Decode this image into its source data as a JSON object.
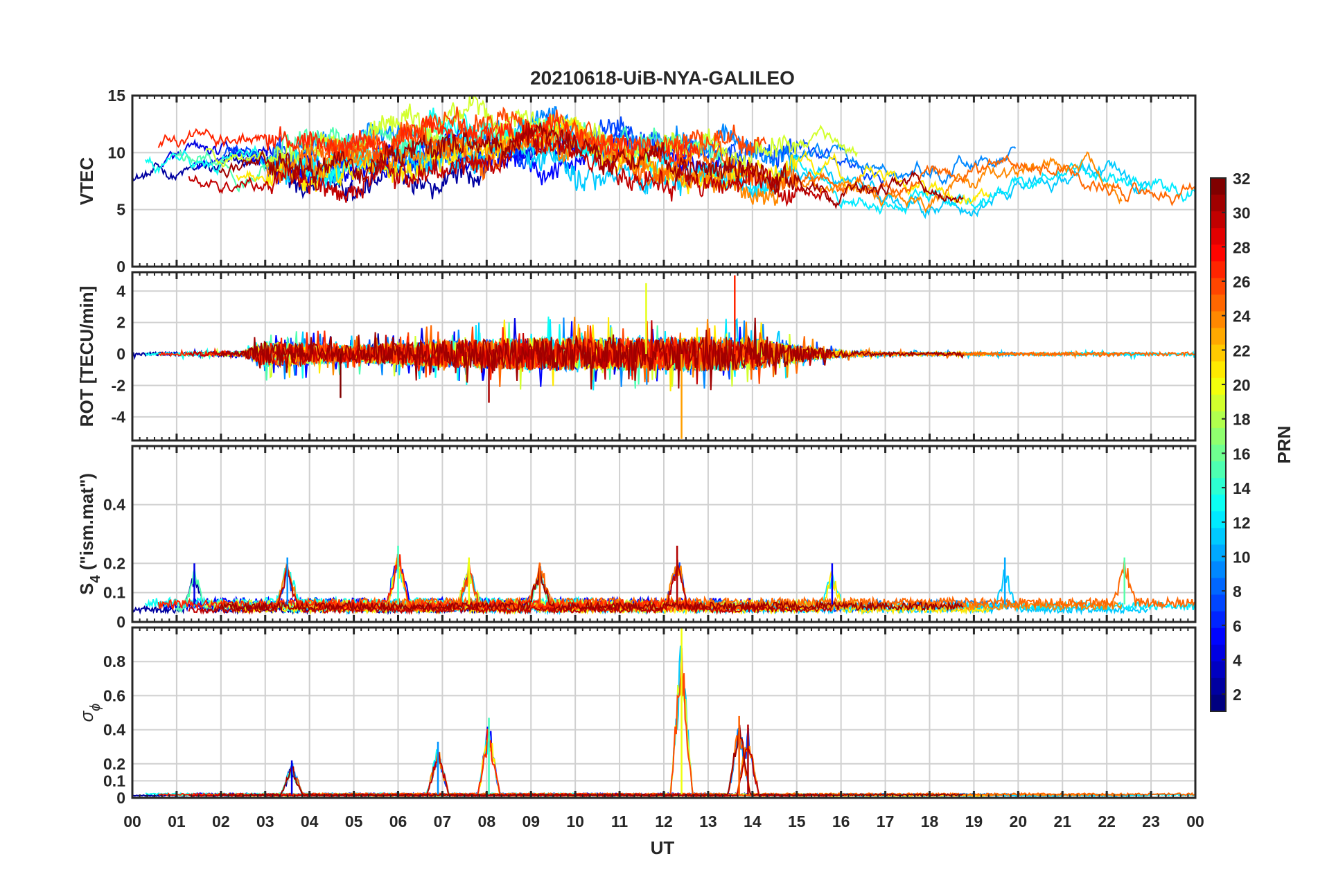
{
  "chart_data": {
    "type": "line",
    "title": "20210618-UiB-NYA-GALILEO",
    "xlabel": "UT",
    "x_tick_labels": [
      "00",
      "01",
      "02",
      "03",
      "04",
      "05",
      "06",
      "07",
      "08",
      "09",
      "10",
      "11",
      "12",
      "13",
      "14",
      "15",
      "16",
      "17",
      "18",
      "19",
      "20",
      "21",
      "22",
      "23",
      "00"
    ],
    "xlim_hours": [
      0,
      24
    ],
    "grid": true,
    "colorbar": {
      "label": "PRN",
      "range": [
        1,
        32
      ],
      "ticks": [
        "2",
        "4",
        "6",
        "8",
        "10",
        "12",
        "14",
        "16",
        "18",
        "20",
        "22",
        "24",
        "26",
        "28",
        "30",
        "32"
      ],
      "colormap": "jet"
    },
    "panels": [
      {
        "ylabel": "VTEC",
        "ylim": [
          0,
          15
        ],
        "yticks": [
          "0",
          "5",
          "10",
          "15"
        ],
        "ytick_values": [
          0,
          5,
          10,
          15
        ],
        "approx_trend": {
          "hours": [
            0,
            2,
            3.5,
            5,
            6,
            7,
            8,
            9,
            10,
            11,
            12,
            13,
            14,
            15,
            16,
            17,
            18,
            19,
            20,
            21,
            22,
            23,
            24
          ],
          "vtec": [
            9.5,
            9.0,
            9.5,
            9.5,
            10.0,
            10.5,
            11.0,
            11.5,
            11.0,
            10.0,
            9.5,
            9.5,
            9.2,
            9.0,
            8.2,
            7.5,
            7.3,
            7.6,
            8.5,
            9.5,
            8.5,
            7.5,
            7.5
          ]
        },
        "noise_level": 0.8
      },
      {
        "ylabel": "ROT [TECU/min]",
        "ylim": [
          -5.5,
          5.2
        ],
        "yticks": [
          "-4",
          "-2",
          "0",
          "2",
          "4"
        ],
        "ytick_values": [
          -4,
          -2,
          0,
          2,
          4
        ],
        "activity_envelope": {
          "hours": [
            0,
            2.5,
            3,
            5,
            7,
            9,
            11,
            13,
            14,
            15,
            16,
            17,
            24
          ],
          "amplitude": [
            0.15,
            0.2,
            1.2,
            0.8,
            1.2,
            1.5,
            1.5,
            1.6,
            1.5,
            0.8,
            0.3,
            0.15,
            0.15
          ]
        },
        "spikes": [
          {
            "hour": 11.6,
            "value": 4.5
          },
          {
            "hour": 12.4,
            "value": -5.4
          },
          {
            "hour": 13.6,
            "value": 5.0
          },
          {
            "hour": 8.05,
            "value": -3.1
          },
          {
            "hour": 4.7,
            "value": -2.8
          }
        ]
      },
      {
        "ylabel": "S₄ (\"ism.mat\")",
        "ylabel_main": "S",
        "ylabel_sub": "4",
        "ylabel_rest": " (\"ism.mat\")",
        "ylim": [
          0,
          0.6
        ],
        "yticks": [
          "0",
          "0.1",
          "0.2",
          "0.4"
        ],
        "ytick_values": [
          0,
          0.1,
          0.2,
          0.4
        ],
        "baseline": 0.06,
        "peaks": [
          {
            "hour": 1.4,
            "value": 0.2
          },
          {
            "hour": 3.5,
            "value": 0.22
          },
          {
            "hour": 6.0,
            "value": 0.26
          },
          {
            "hour": 7.6,
            "value": 0.22
          },
          {
            "hour": 9.2,
            "value": 0.2
          },
          {
            "hour": 12.3,
            "value": 0.26
          },
          {
            "hour": 15.8,
            "value": 0.2
          },
          {
            "hour": 19.7,
            "value": 0.22
          },
          {
            "hour": 22.4,
            "value": 0.22
          }
        ]
      },
      {
        "ylabel": "σ ϕ",
        "ylabel_main": "σ",
        "ylabel_sub": "ϕ",
        "ylim": [
          0,
          1.0
        ],
        "yticks": [
          "0",
          "0.1",
          "0.2",
          "0.4",
          "0.6",
          "0.8"
        ],
        "ytick_values": [
          0,
          0.1,
          0.2,
          0.4,
          0.6,
          0.8
        ],
        "baseline": 0.02,
        "peaks": [
          {
            "hour": 3.6,
            "value": 0.22
          },
          {
            "hour": 6.9,
            "value": 0.33
          },
          {
            "hour": 8.05,
            "value": 0.47
          },
          {
            "hour": 12.4,
            "value": 1.0
          },
          {
            "hour": 13.7,
            "value": 0.48
          },
          {
            "hour": 13.9,
            "value": 0.43
          }
        ]
      }
    ]
  }
}
